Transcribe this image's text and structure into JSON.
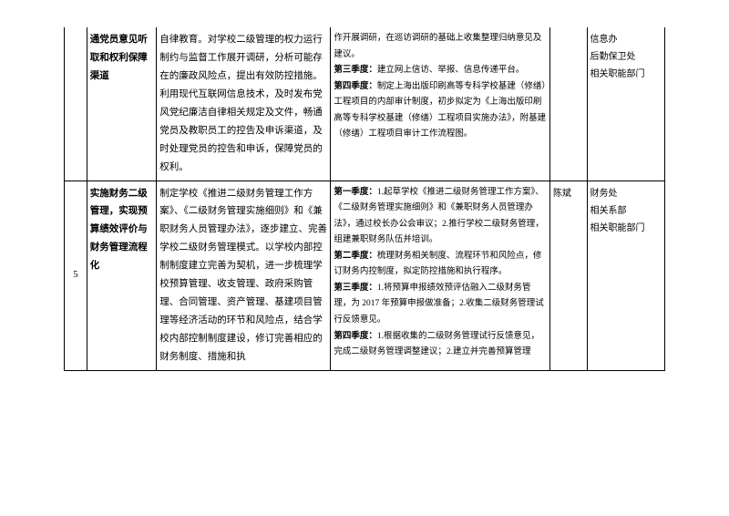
{
  "rows": [
    {
      "num": "",
      "title": "通党员意见听取和权利保障渠道",
      "desc": "自律教育。对学校二级管理的权力运行制约与监督工作展开调研，分析可能存在的廉政风险点，提出有效防控措施。利用现代互联网信息技术，及时发布党风党纪廉洁自律相关规定及文件，畅通党员及教职员工的控告及申诉渠道，及时处理党员的控告和申诉，保障党员的权利。",
      "q_intro": "作开展调研，在巡访调研的基础上收集整理归纳意见及建议。",
      "q3_label": "第三季度：",
      "q3": "建立网上信访、举报、信息传递平台。",
      "q4_label": "第四季度：",
      "q4": "制定上海出版印刷高等专科学校基建（修缮）工程项目的内部审计制度，初步拟定为《上海出版印刷高等专科学校基建（修缮）工程项目实施办法》，附基建（修缮）工程项目审计工作流程图。",
      "person": "",
      "dept": "信息办\n后勤保卫处\n相关职能部门"
    },
    {
      "num": "5",
      "title": "实施财务二级管理，实现预算绩效评价与财务管理流程化",
      "desc": "制定学校《推进二级财务管理工作方案》、《二级财务管理实施细则》和《兼职财务人员管理办法》，逐步建立、完善学校二级财务管理模式。以学校内部控制制度建立完善为契机，进一步梳理学校预算管理、收支管理、政府采购管理、合同管理、资产管理、基建项目管理等经济活动的环节和风险点，结合学校内部控制制度建设，修订完善相应的财务制度、措施和执",
      "q1_label": "第一季度：",
      "q1": "1.起草学校《推进二级财务管理工作方案》、《二级财务管理实施细则》和《兼职财务人员管理办法》，通过校长办公会审议；2.推行学校二级财务管理，组建兼职财务队伍并培训。",
      "q2_label": "第二季度：",
      "q2": "梳理财务相关制度、流程环节和风险点，修订财务内控制度，拟定防控措施和执行程序。",
      "q3_label": "第三季度：",
      "q3": "1.将预算申报绩效预评估融入二级财务管理，为 2017 年预算申报做准备；2.收集二级财务管理试行反馈意见。",
      "q4_label": "第四季度：",
      "q4": "1.根据收集的二级财务管理试行反馈意见，完成二级财务管理调整建议；2.建立并完善预算管理",
      "person": "陈斌",
      "dept": "财务处\n相关系部\n相关职能部门"
    }
  ]
}
